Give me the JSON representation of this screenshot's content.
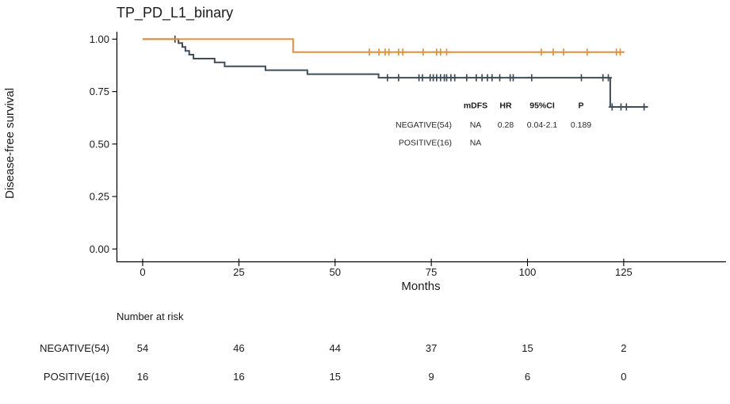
{
  "chart_data": {
    "type": "line",
    "subtype": "kaplan-meier-survival",
    "title": "TP_PD_L1_binary",
    "xlabel": "Months",
    "ylabel": "Disease-free survival",
    "grid": false,
    "xlim": [
      0,
      150
    ],
    "ylim": [
      0,
      1
    ],
    "x_ticks": [
      {
        "v": 0,
        "label": "0"
      },
      {
        "v": 25,
        "label": "25"
      },
      {
        "v": 50,
        "label": "50"
      },
      {
        "v": 75,
        "label": "75"
      },
      {
        "v": 100,
        "label": "100"
      },
      {
        "v": 125,
        "label": "125"
      }
    ],
    "y_ticks": [
      {
        "v": 0.0,
        "label": "0.00"
      },
      {
        "v": 0.25,
        "label": "0.25"
      },
      {
        "v": 0.5,
        "label": "0.50"
      },
      {
        "v": 0.75,
        "label": "0.75"
      },
      {
        "v": 1.0,
        "label": "1.00"
      }
    ],
    "series": [
      {
        "name": "NEGATIVE(54)",
        "color": "#3E4D57",
        "steps": [
          [
            0,
            1.0
          ],
          [
            9.3,
            0.981
          ],
          [
            10.3,
            0.963
          ],
          [
            11.1,
            0.944
          ],
          [
            12.1,
            0.926
          ],
          [
            13.2,
            0.907
          ],
          [
            18.7,
            0.889
          ],
          [
            21.3,
            0.87
          ],
          [
            31.9,
            0.852
          ],
          [
            42.8,
            0.833
          ],
          [
            61.3,
            0.816
          ],
          [
            121.5,
            0.677
          ]
        ],
        "end": 131.3,
        "censors": [
          [
            8.4,
            1.0
          ],
          [
            63.6,
            0.816
          ],
          [
            66.5,
            0.816
          ],
          [
            71.8,
            0.816
          ],
          [
            72.7,
            0.816
          ],
          [
            74.7,
            0.816
          ],
          [
            75.5,
            0.816
          ],
          [
            76.4,
            0.816
          ],
          [
            77.4,
            0.816
          ],
          [
            78.4,
            0.816
          ],
          [
            79.0,
            0.816
          ],
          [
            80.1,
            0.816
          ],
          [
            81.1,
            0.816
          ],
          [
            84.2,
            0.816
          ],
          [
            86.7,
            0.816
          ],
          [
            88.2,
            0.816
          ],
          [
            89.6,
            0.816
          ],
          [
            90.8,
            0.816
          ],
          [
            92.8,
            0.816
          ],
          [
            95.5,
            0.816
          ],
          [
            96.3,
            0.816
          ],
          [
            101.1,
            0.816
          ],
          [
            114.0,
            0.816
          ],
          [
            119.6,
            0.816
          ],
          [
            121.0,
            0.816
          ],
          [
            122.0,
            0.677
          ],
          [
            124.3,
            0.677
          ],
          [
            125.7,
            0.677
          ],
          [
            130.3,
            0.677
          ]
        ]
      },
      {
        "name": "POSITIVE(16)",
        "color": "#E2903E",
        "steps": [
          [
            0,
            1.0
          ],
          [
            39.1,
            0.938
          ]
        ],
        "end": 125.2,
        "censors": [
          [
            58.9,
            0.938
          ],
          [
            61.4,
            0.938
          ],
          [
            63.0,
            0.938
          ],
          [
            64.0,
            0.938
          ],
          [
            66.5,
            0.938
          ],
          [
            67.6,
            0.938
          ],
          [
            72.9,
            0.938
          ],
          [
            76.4,
            0.938
          ],
          [
            77.4,
            0.938
          ],
          [
            79.0,
            0.938
          ],
          [
            103.6,
            0.938
          ],
          [
            106.7,
            0.938
          ],
          [
            109.4,
            0.938
          ],
          [
            115.5,
            0.938
          ],
          [
            123.1,
            0.938
          ],
          [
            124.1,
            0.938
          ]
        ]
      }
    ],
    "annotation_table": {
      "headers": [
        "mDFS",
        "HR",
        "95%CI",
        "P"
      ],
      "rows": [
        {
          "label": "NEGATIVE(54)",
          "values": [
            "NA",
            "0.28",
            "0.04-2.1",
            "0.189"
          ]
        },
        {
          "label": "POSITIVE(16)",
          "values": [
            "NA",
            "",
            "",
            ""
          ]
        }
      ]
    },
    "risk_table": {
      "header": "Number at risk",
      "times": [
        0,
        25,
        50,
        75,
        100,
        125
      ],
      "rows": [
        {
          "label": "NEGATIVE(54)",
          "color": "#3E4D57",
          "values": [
            "54",
            "46",
            "44",
            "37",
            "15",
            "2"
          ]
        },
        {
          "label": "POSITIVE(16)",
          "color": "#E2903E",
          "values": [
            "16",
            "16",
            "15",
            "9",
            "6",
            "0"
          ]
        }
      ]
    }
  }
}
